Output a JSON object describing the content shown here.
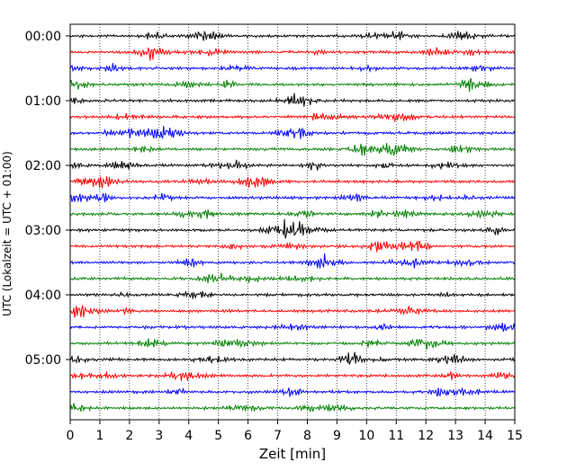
{
  "chart_data": {
    "type": "line",
    "subtype": "helicorder-seismogram",
    "xlabel": "Zeit  [min]",
    "ylabel": "UTC (Lokalzeit = UTC + 01:00)",
    "xlim": [
      0,
      15
    ],
    "x_ticks": [
      "0",
      "1",
      "2",
      "3",
      "4",
      "5",
      "6",
      "7",
      "8",
      "9",
      "10",
      "11",
      "12",
      "13",
      "14",
      "15"
    ],
    "y_tick_labels": [
      "00:00",
      "01:00",
      "02:00",
      "03:00",
      "04:00",
      "05:00"
    ],
    "minutes_per_trace": 15,
    "traces_per_label": 4,
    "trace_start_times": [
      "00:00",
      "00:15",
      "00:30",
      "00:45",
      "01:00",
      "01:15",
      "01:30",
      "01:45",
      "02:00",
      "02:15",
      "02:30",
      "02:45",
      "03:00",
      "03:15",
      "03:30",
      "03:45",
      "04:00",
      "04:15",
      "04:30",
      "04:45",
      "05:00",
      "05:15",
      "05:30",
      "05:45"
    ],
    "series_colors": [
      "#000000",
      "#ff0000",
      "#0000ff",
      "#008000"
    ],
    "grid": "vertical dotted lines at each minute"
  }
}
